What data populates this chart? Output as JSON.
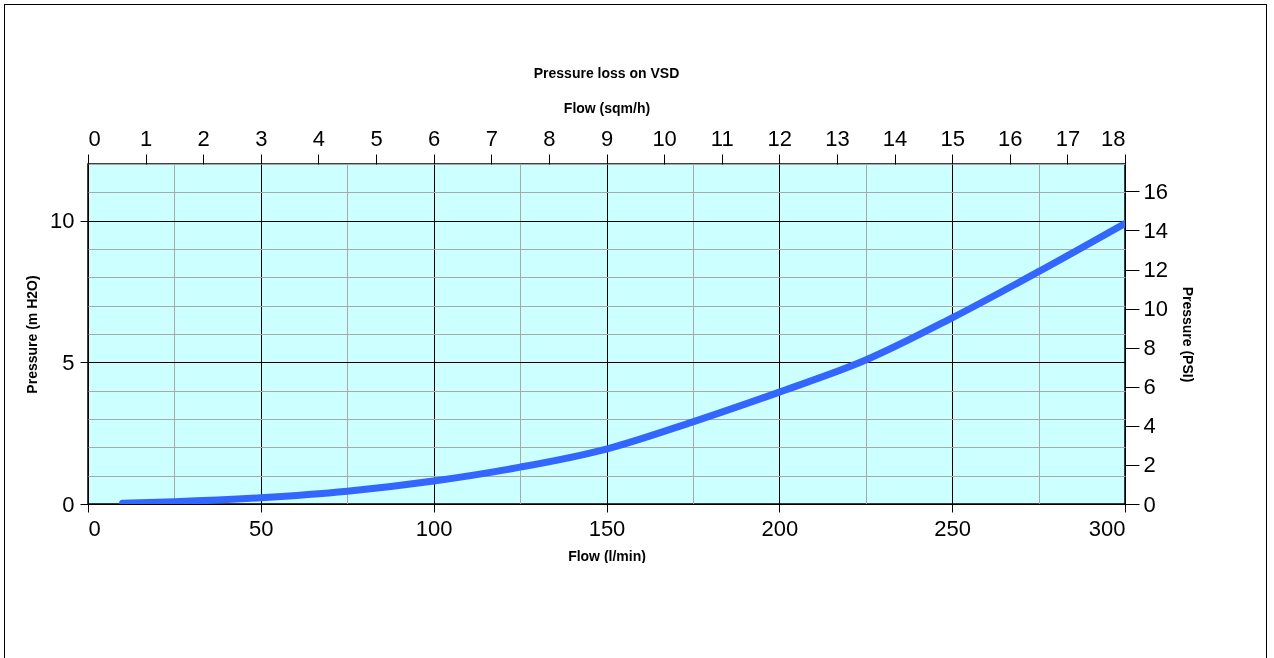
{
  "chart_data": {
    "type": "line",
    "title": "Pressure loss on VSD",
    "xlabel": "Flow (l/min)",
    "ylabel": "Pressure (m H2O)",
    "x2label": "Flow  (sqm/h)",
    "y2label": "Pressure (PSI)",
    "x": [
      10,
      25,
      50,
      75,
      100,
      125,
      150,
      175,
      200,
      225,
      250,
      275,
      300
    ],
    "series": [
      {
        "color": "#3366ff",
        "values": [
          0.03,
          0.08,
          0.22,
          0.45,
          0.81,
          1.3,
          1.94,
          2.9,
          3.95,
          5.08,
          6.57,
          8.2,
          9.9
        ]
      }
    ],
    "xlim": [
      0,
      300
    ],
    "xticks": [
      0,
      50,
      100,
      150,
      200,
      250,
      300
    ],
    "ylim": [
      0,
      12
    ],
    "yticks": [
      0,
      5,
      10
    ],
    "x2lim": [
      0,
      18
    ],
    "x2ticks": [
      0,
      1,
      2,
      3,
      4,
      5,
      6,
      7,
      8,
      9,
      10,
      11,
      12,
      13,
      14,
      15,
      16,
      17,
      18
    ],
    "y2lim": [
      0,
      17.4
    ],
    "y2ticks": [
      0,
      2,
      4,
      6,
      8,
      10,
      12,
      14,
      16
    ],
    "grid": true,
    "line_style": "solid"
  }
}
